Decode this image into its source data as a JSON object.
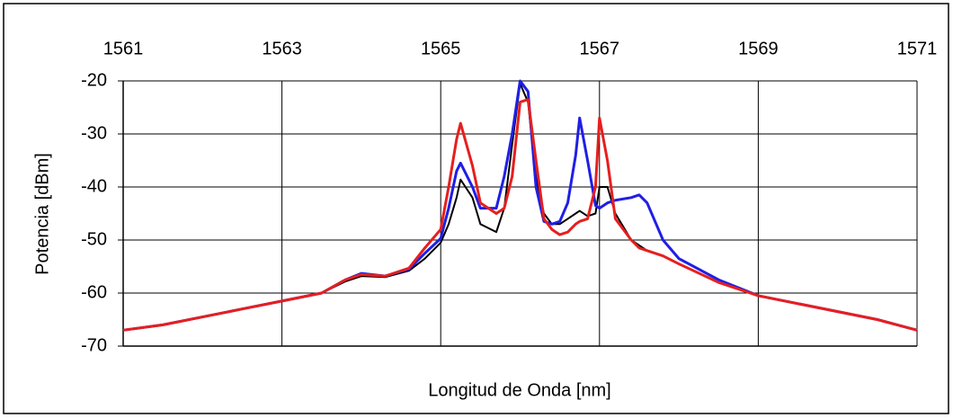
{
  "chart_data": {
    "type": "line",
    "xlabel": "Longitud de Onda [nm]",
    "ylabel": "Potencia [dBm]",
    "xlim": [
      1561,
      1571
    ],
    "xticks": [
      1561,
      1563,
      1565,
      1567,
      1569,
      1571
    ],
    "ylim": [
      -70,
      -20
    ],
    "yticks": [
      -70,
      -60,
      -50,
      -40,
      -30,
      -20
    ],
    "grid": true,
    "x": [
      1561,
      1561.5,
      1562,
      1562.5,
      1563,
      1563.5,
      1563.8,
      1564,
      1564.3,
      1564.6,
      1564.8,
      1565,
      1565.1,
      1565.2,
      1565.25,
      1565.4,
      1565.5,
      1565.7,
      1565.8,
      1565.9,
      1566,
      1566.1,
      1566.2,
      1566.3,
      1566.4,
      1566.5,
      1566.6,
      1566.7,
      1566.75,
      1566.85,
      1566.95,
      1567,
      1567.1,
      1567.2,
      1567.4,
      1567.5,
      1567.6,
      1567.8,
      1568,
      1568.5,
      1569,
      1569.5,
      1570,
      1570.5,
      1571
    ],
    "series": [
      {
        "color": "#000000",
        "values": [
          -67,
          -66,
          -64.5,
          -63,
          -61.5,
          -60,
          -57.8,
          -56.8,
          -57,
          -55.8,
          -53.5,
          -50.5,
          -47,
          -42,
          -38.6,
          -42,
          -47,
          -48.5,
          -44,
          -32,
          -20.5,
          -24,
          -38,
          -45,
          -47,
          -47,
          -46,
          -45,
          -44.5,
          -45.5,
          -45,
          -40,
          -40,
          -45,
          -50,
          -51,
          -52,
          -53,
          -54.5,
          -58,
          -60.5,
          -62,
          -63.5,
          -65,
          -67
        ]
      },
      {
        "color": "#1f1fe6",
        "values": [
          -67,
          -66,
          -64.5,
          -63,
          -61.5,
          -60,
          -57.5,
          -56.3,
          -56.8,
          -55.5,
          -52.5,
          -49.7,
          -44,
          -37,
          -35.5,
          -40,
          -44,
          -44,
          -38,
          -30,
          -20,
          -22,
          -40,
          -46.5,
          -47,
          -46.5,
          -43,
          -34,
          -27,
          -35,
          -43.5,
          -44,
          -43,
          -42.5,
          -42,
          -41.5,
          -43,
          -50,
          -53.5,
          -57.5,
          -60.5,
          -62,
          -63.5,
          -65,
          -67
        ]
      },
      {
        "color": "#e61f1f",
        "values": [
          -67,
          -66,
          -64.5,
          -63,
          -61.5,
          -60,
          -57.5,
          -56.5,
          -56.8,
          -55.3,
          -51.5,
          -48,
          -40,
          -31,
          -28,
          -36,
          -43,
          -45,
          -44,
          -38,
          -24,
          -23.5,
          -35,
          -46,
          -48,
          -49,
          -48.5,
          -47,
          -46.5,
          -46,
          -40,
          -27,
          -35,
          -46,
          -50,
          -51.5,
          -52,
          -53,
          -54.5,
          -58,
          -60.5,
          -62,
          -63.5,
          -65,
          -67
        ]
      }
    ]
  }
}
